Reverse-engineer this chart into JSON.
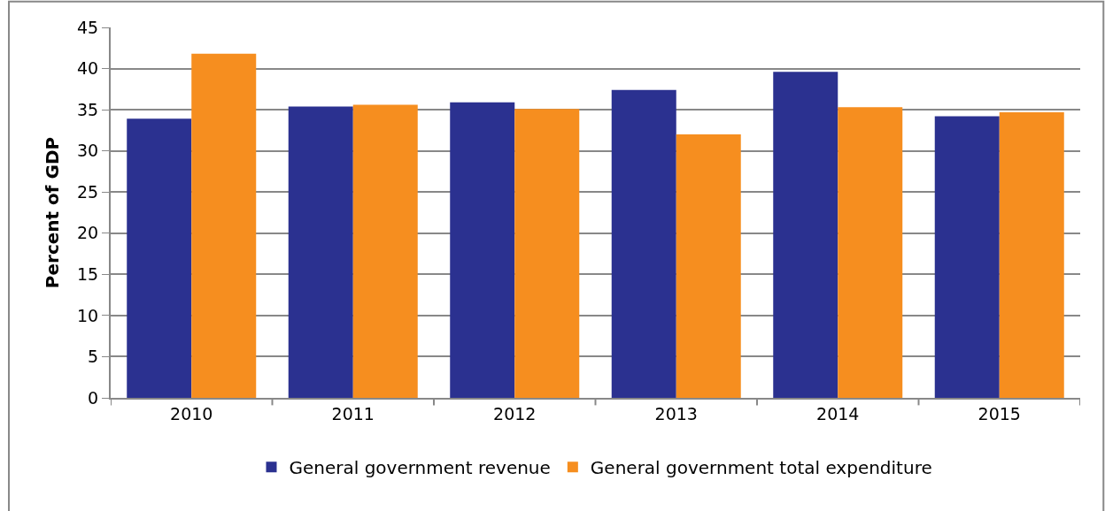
{
  "chart_data": {
    "type": "bar",
    "ylabel": "Percent of GDP",
    "categories": [
      "2010",
      "2011",
      "2012",
      "2013",
      "2014",
      "2015"
    ],
    "series": [
      {
        "name": "General government revenue",
        "color": "#2b3190",
        "values": [
          33.9,
          35.4,
          35.9,
          37.4,
          39.6,
          34.2
        ]
      },
      {
        "name": "General government total expenditure",
        "color": "#f68e1f",
        "values": [
          41.8,
          35.6,
          35.1,
          32.0,
          35.3,
          34.7
        ]
      }
    ],
    "ylim": [
      0,
      45
    ],
    "yticks": [
      0,
      5,
      10,
      15,
      20,
      25,
      30,
      35,
      40,
      45
    ],
    "grid": "y",
    "legend": "bottom"
  }
}
